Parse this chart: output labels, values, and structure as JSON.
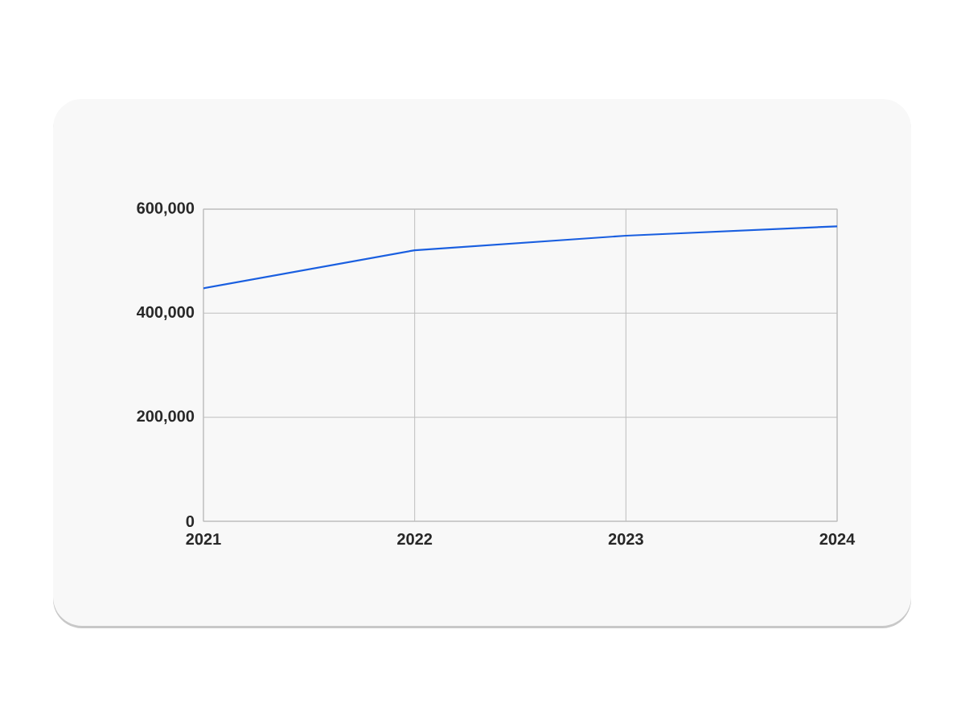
{
  "chart_data": {
    "type": "line",
    "x": [
      2021,
      2022,
      2023,
      2024
    ],
    "series": [
      {
        "color": "#1a5fe0",
        "values": [
          448000,
          521000,
          549000,
          567000
        ]
      }
    ],
    "xlim": [
      2021,
      2024
    ],
    "xticks": [
      2021,
      2022,
      2023,
      2024
    ],
    "ylim": [
      0,
      600000
    ],
    "yticks": [
      0,
      {
        "value": 200000,
        "label": "200,000"
      },
      {
        "value": 400000,
        "label": "400,000"
      },
      {
        "value": 600000,
        "label": "600,000"
      }
    ],
    "grid": true
  }
}
